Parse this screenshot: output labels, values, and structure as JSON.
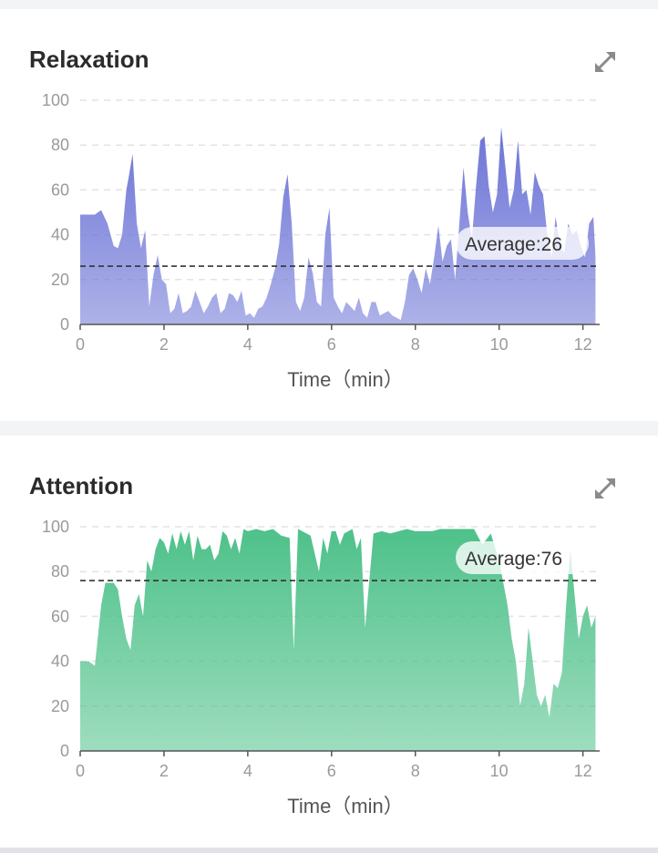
{
  "chart_data": [
    {
      "type": "area",
      "title": "Relaxation",
      "xlabel": "Time（min）",
      "ylabel": "",
      "xlim": [
        0,
        12.4
      ],
      "ylim": [
        0,
        100
      ],
      "xticks": [
        0,
        2,
        4,
        6,
        8,
        10,
        12
      ],
      "yticks": [
        0,
        20,
        40,
        60,
        80,
        100
      ],
      "grid": true,
      "color": "#6b73d6",
      "average": {
        "value": 26,
        "label": "Average:26"
      },
      "x": [
        0,
        0.2,
        0.35,
        0.5,
        0.65,
        0.8,
        0.9,
        1.0,
        1.1,
        1.15,
        1.25,
        1.35,
        1.45,
        1.55,
        1.65,
        1.75,
        1.85,
        1.95,
        2.05,
        2.15,
        2.25,
        2.35,
        2.45,
        2.55,
        2.65,
        2.75,
        2.85,
        2.95,
        3.05,
        3.15,
        3.25,
        3.35,
        3.45,
        3.55,
        3.65,
        3.75,
        3.85,
        3.95,
        4.05,
        4.15,
        4.25,
        4.35,
        4.45,
        4.55,
        4.65,
        4.75,
        4.85,
        4.95,
        5.05,
        5.15,
        5.25,
        5.35,
        5.45,
        5.55,
        5.65,
        5.75,
        5.85,
        5.95,
        6.05,
        6.15,
        6.25,
        6.35,
        6.45,
        6.55,
        6.65,
        6.75,
        6.85,
        6.95,
        7.05,
        7.15,
        7.25,
        7.35,
        7.45,
        7.55,
        7.65,
        7.75,
        7.85,
        7.95,
        8.05,
        8.15,
        8.25,
        8.35,
        8.45,
        8.55,
        8.65,
        8.75,
        8.85,
        8.95,
        9.05,
        9.15,
        9.25,
        9.35,
        9.45,
        9.55,
        9.65,
        9.75,
        9.85,
        9.95,
        10.05,
        10.15,
        10.25,
        10.35,
        10.45,
        10.55,
        10.65,
        10.75,
        10.85,
        10.95,
        11.05,
        11.15,
        11.25,
        11.35,
        11.45,
        11.55,
        11.65,
        11.75,
        11.85,
        11.95,
        12.05,
        12.15,
        12.25,
        12.3
      ],
      "values": [
        49,
        49,
        49,
        51,
        45,
        35,
        34,
        40,
        60,
        65,
        76,
        45,
        34,
        42,
        8,
        22,
        31,
        20,
        18,
        5,
        7,
        14,
        5,
        6,
        8,
        15,
        10,
        5,
        8,
        12,
        14,
        5,
        7,
        14,
        13,
        10,
        15,
        4,
        5,
        3,
        7,
        8,
        12,
        18,
        25,
        36,
        57,
        67,
        45,
        10,
        6,
        12,
        30,
        23,
        10,
        8,
        40,
        52,
        12,
        8,
        5,
        10,
        8,
        6,
        12,
        5,
        3,
        10,
        10,
        4,
        5,
        6,
        4,
        3,
        2,
        10,
        22,
        25,
        20,
        14,
        25,
        18,
        30,
        44,
        28,
        35,
        38,
        20,
        45,
        70,
        50,
        38,
        62,
        82,
        84,
        62,
        50,
        58,
        88,
        70,
        52,
        60,
        82,
        58,
        60,
        49,
        68,
        62,
        58,
        40,
        30,
        48,
        35,
        32,
        45,
        40,
        42,
        35,
        30,
        45,
        48,
        30
      ]
    },
    {
      "type": "area",
      "title": "Attention",
      "xlabel": "Time（min）",
      "ylabel": "",
      "xlim": [
        0,
        12.4
      ],
      "ylim": [
        0,
        100
      ],
      "xticks": [
        0,
        2,
        4,
        6,
        8,
        10,
        12
      ],
      "yticks": [
        0,
        20,
        40,
        60,
        80,
        100
      ],
      "grid": true,
      "color": "#4ec18a",
      "average": {
        "value": 76,
        "label": "Average:76"
      },
      "x": [
        0,
        0.2,
        0.35,
        0.5,
        0.6,
        0.7,
        0.8,
        0.9,
        1.0,
        1.1,
        1.2,
        1.3,
        1.4,
        1.5,
        1.6,
        1.7,
        1.8,
        1.9,
        2.0,
        2.1,
        2.2,
        2.3,
        2.4,
        2.5,
        2.6,
        2.7,
        2.8,
        2.9,
        3.0,
        3.1,
        3.2,
        3.3,
        3.4,
        3.5,
        3.6,
        3.7,
        3.8,
        3.9,
        4.0,
        4.2,
        4.4,
        4.6,
        4.8,
        5.0,
        5.1,
        5.2,
        5.3,
        5.5,
        5.7,
        5.8,
        5.9,
        6.0,
        6.1,
        6.2,
        6.3,
        6.4,
        6.5,
        6.6,
        6.7,
        6.8,
        7.0,
        7.2,
        7.4,
        7.6,
        7.8,
        8.0,
        8.2,
        8.4,
        8.6,
        8.8,
        9.0,
        9.2,
        9.4,
        9.6,
        9.8,
        10.0,
        10.1,
        10.2,
        10.3,
        10.4,
        10.5,
        10.6,
        10.7,
        10.8,
        10.9,
        11.0,
        11.1,
        11.2,
        11.3,
        11.4,
        11.5,
        11.6,
        11.7,
        11.8,
        11.9,
        12.0,
        12.1,
        12.2,
        12.3
      ],
      "values": [
        40,
        40,
        38,
        65,
        75,
        75,
        75,
        72,
        60,
        50,
        45,
        65,
        70,
        60,
        85,
        80,
        90,
        95,
        93,
        88,
        97,
        90,
        98,
        92,
        98,
        85,
        96,
        90,
        90,
        92,
        85,
        88,
        98,
        96,
        90,
        95,
        88,
        99,
        98,
        99,
        98,
        99,
        96,
        95,
        45,
        99,
        98,
        96,
        80,
        95,
        88,
        98,
        98,
        92,
        97,
        98,
        99,
        90,
        95,
        55,
        97,
        98,
        97,
        98,
        99,
        98,
        98,
        98,
        99,
        99,
        99,
        99,
        99,
        92,
        97,
        85,
        75,
        65,
        50,
        40,
        20,
        30,
        55,
        40,
        25,
        20,
        25,
        15,
        30,
        28,
        35,
        65,
        90,
        70,
        50,
        60,
        65,
        55,
        60
      ]
    }
  ]
}
